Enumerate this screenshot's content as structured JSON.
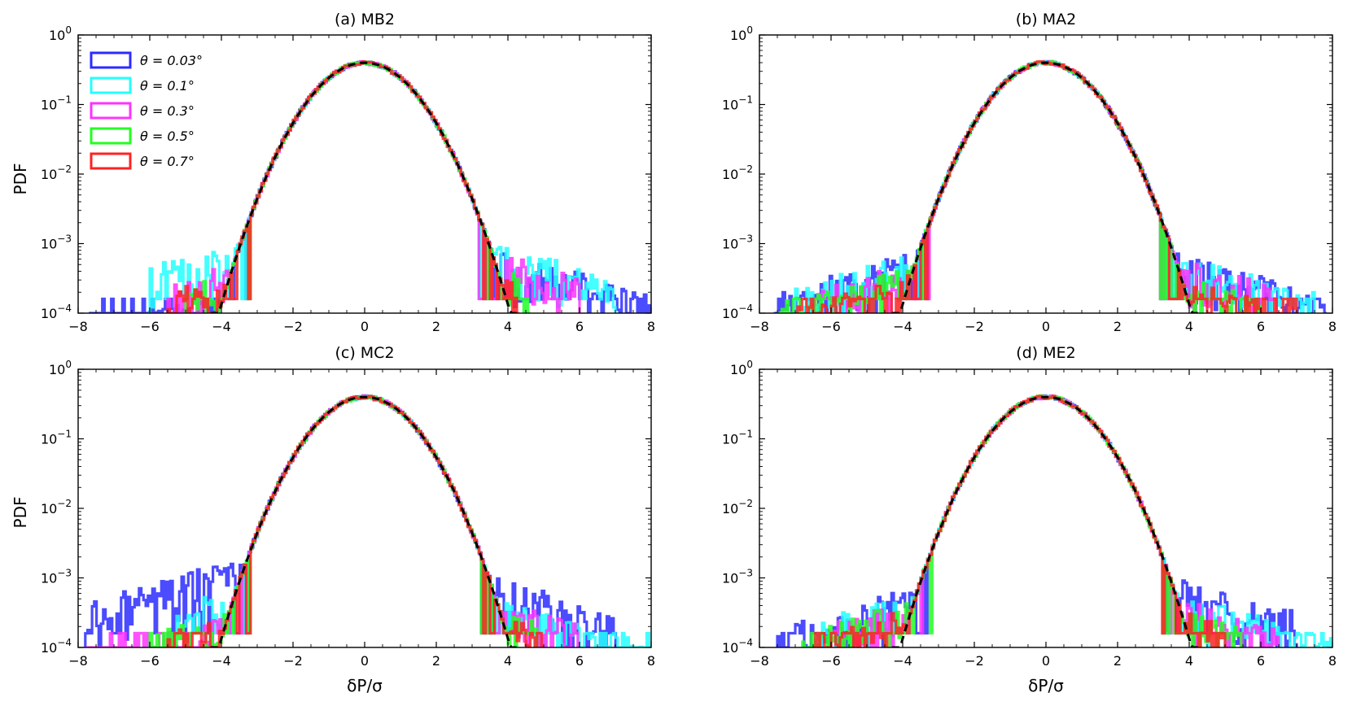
{
  "figure": {
    "ylabel": "PDF",
    "xlabel": "δP/σ"
  },
  "legend": {
    "entries": [
      {
        "label": "θ = 0.03°",
        "color": "#2b2bff"
      },
      {
        "label": "θ = 0.1°",
        "color": "#22ffff"
      },
      {
        "label": "θ = 0.3°",
        "color": "#ff33ff"
      },
      {
        "label": "θ = 0.5°",
        "color": "#22ff22"
      },
      {
        "label": "θ = 0.7°",
        "color": "#ff2222"
      }
    ]
  },
  "chart_data": [
    {
      "type": "histogram",
      "title": "(a) MB2",
      "xlabel": "",
      "ylabel": "PDF",
      "xlim": [
        -8,
        8
      ],
      "ylim": [
        0.0001,
        1
      ],
      "yscale": "log",
      "xticks": [
        "−8",
        "−6",
        "−4",
        "−2",
        "0",
        "2",
        "4",
        "6",
        "8"
      ],
      "yticks": [
        "10^-4",
        "10^-3",
        "10^-2",
        "10^-1",
        "10^0"
      ],
      "reference_curve": "gaussian N(0,1), dashed black",
      "series": [
        {
          "name": "θ = 0.03°",
          "color": "#2b2bff",
          "x_extent": [
            -7.7,
            8.0
          ],
          "tail_left_level": 0.0002,
          "tail_right_level": 0.0007
        },
        {
          "name": "θ = 0.1°",
          "color": "#22ffff",
          "x_extent": [
            -6.0,
            7.0
          ],
          "tail_left_level": 0.0008,
          "tail_right_level": 0.0008
        },
        {
          "name": "θ = 0.3°",
          "color": "#ff33ff",
          "x_extent": [
            -5.5,
            6.0
          ],
          "tail_left_level": 0.0004,
          "tail_right_level": 0.0006
        },
        {
          "name": "θ = 0.5°",
          "color": "#22ff22",
          "x_extent": [
            -5.0,
            4.6
          ],
          "tail_left_level": 0.0003,
          "tail_right_level": 0.0004
        },
        {
          "name": "θ = 0.7°",
          "color": "#ff2222",
          "x_extent": [
            -5.5,
            4.3
          ],
          "tail_left_level": 0.0003,
          "tail_right_level": 0.0003
        }
      ]
    },
    {
      "type": "histogram",
      "title": "(b) MA2",
      "xlabel": "",
      "ylabel": "",
      "xlim": [
        -8,
        8
      ],
      "ylim": [
        0.0001,
        1
      ],
      "yscale": "log",
      "xticks": [
        "−8",
        "−6",
        "−4",
        "−2",
        "0",
        "2",
        "4",
        "6",
        "8"
      ],
      "yticks": [
        "10^-4",
        "10^-3",
        "10^-2",
        "10^-1",
        "10^0"
      ],
      "reference_curve": "gaussian N(0,1), dashed black",
      "series": [
        {
          "name": "θ = 0.03°",
          "color": "#2b2bff",
          "x_extent": [
            -7.6,
            7.8
          ],
          "tail_left_level": 0.0006,
          "tail_right_level": 0.0006
        },
        {
          "name": "θ = 0.1°",
          "color": "#22ffff",
          "x_extent": [
            -7.0,
            7.5
          ],
          "tail_left_level": 0.0006,
          "tail_right_level": 0.0006
        },
        {
          "name": "θ = 0.3°",
          "color": "#ff33ff",
          "x_extent": [
            -6.5,
            6.5
          ],
          "tail_left_level": 0.0005,
          "tail_right_level": 0.0005
        },
        {
          "name": "θ = 0.5°",
          "color": "#22ff22",
          "x_extent": [
            -7.5,
            6.0
          ],
          "tail_left_level": 0.0004,
          "tail_right_level": 0.0003
        },
        {
          "name": "θ = 0.7°",
          "color": "#ff2222",
          "x_extent": [
            -7.0,
            7.0
          ],
          "tail_left_level": 0.0003,
          "tail_right_level": 0.0003
        }
      ]
    },
    {
      "type": "histogram",
      "title": "(c) MC2",
      "xlabel": "δP/σ",
      "ylabel": "PDF",
      "xlim": [
        -8,
        8
      ],
      "ylim": [
        0.0001,
        1
      ],
      "yscale": "log",
      "xticks": [
        "−8",
        "−6",
        "−4",
        "−2",
        "0",
        "2",
        "4",
        "6",
        "8"
      ],
      "yticks": [
        "10^-4",
        "10^-3",
        "10^-2",
        "10^-1",
        "10^0"
      ],
      "reference_curve": "gaussian N(0,1), dashed black",
      "series": [
        {
          "name": "θ = 0.03°",
          "color": "#2b2bff",
          "x_extent": [
            -7.8,
            7.0
          ],
          "tail_left_level": 0.0015,
          "tail_right_level": 0.0008
        },
        {
          "name": "θ = 0.1°",
          "color": "#22ffff",
          "x_extent": [
            -5.5,
            8.0
          ],
          "tail_left_level": 0.0006,
          "tail_right_level": 0.0004
        },
        {
          "name": "θ = 0.3°",
          "color": "#ff33ff",
          "x_extent": [
            -7.8,
            6.0
          ],
          "tail_left_level": 0.00025,
          "tail_right_level": 0.0004
        },
        {
          "name": "θ = 0.5°",
          "color": "#22ff22",
          "x_extent": [
            -6.0,
            4.8
          ],
          "tail_left_level": 0.0003,
          "tail_right_level": 0.0003
        },
        {
          "name": "θ = 0.7°",
          "color": "#ff2222",
          "x_extent": [
            -5.5,
            5.0
          ],
          "tail_left_level": 0.00025,
          "tail_right_level": 0.00025
        }
      ]
    },
    {
      "type": "histogram",
      "title": "(d) ME2",
      "xlabel": "δP/σ",
      "ylabel": "",
      "xlim": [
        -8,
        8
      ],
      "ylim": [
        0.0001,
        1
      ],
      "yscale": "log",
      "xticks": [
        "−8",
        "−6",
        "−4",
        "−2",
        "0",
        "2",
        "4",
        "6",
        "8"
      ],
      "yticks": [
        "10^-4",
        "10^-3",
        "10^-2",
        "10^-1",
        "10^0"
      ],
      "reference_curve": "gaussian N(0,1), dashed black",
      "series": [
        {
          "name": "θ = 0.03°",
          "color": "#2b2bff",
          "x_extent": [
            -7.5,
            7.0
          ],
          "tail_left_level": 0.0006,
          "tail_right_level": 0.0008
        },
        {
          "name": "θ = 0.1°",
          "color": "#22ffff",
          "x_extent": [
            -6.5,
            8.0
          ],
          "tail_left_level": 0.0005,
          "tail_right_level": 0.0005
        },
        {
          "name": "θ = 0.3°",
          "color": "#ff33ff",
          "x_extent": [
            -6.0,
            6.5
          ],
          "tail_left_level": 0.0004,
          "tail_right_level": 0.0004
        },
        {
          "name": "θ = 0.5°",
          "color": "#22ff22",
          "x_extent": [
            -6.8,
            5.5
          ],
          "tail_left_level": 0.0004,
          "tail_right_level": 0.0003
        },
        {
          "name": "θ = 0.7°",
          "color": "#ff2222",
          "x_extent": [
            -6.5,
            5.0
          ],
          "tail_left_level": 0.0003,
          "tail_right_level": 0.0003
        }
      ]
    }
  ]
}
